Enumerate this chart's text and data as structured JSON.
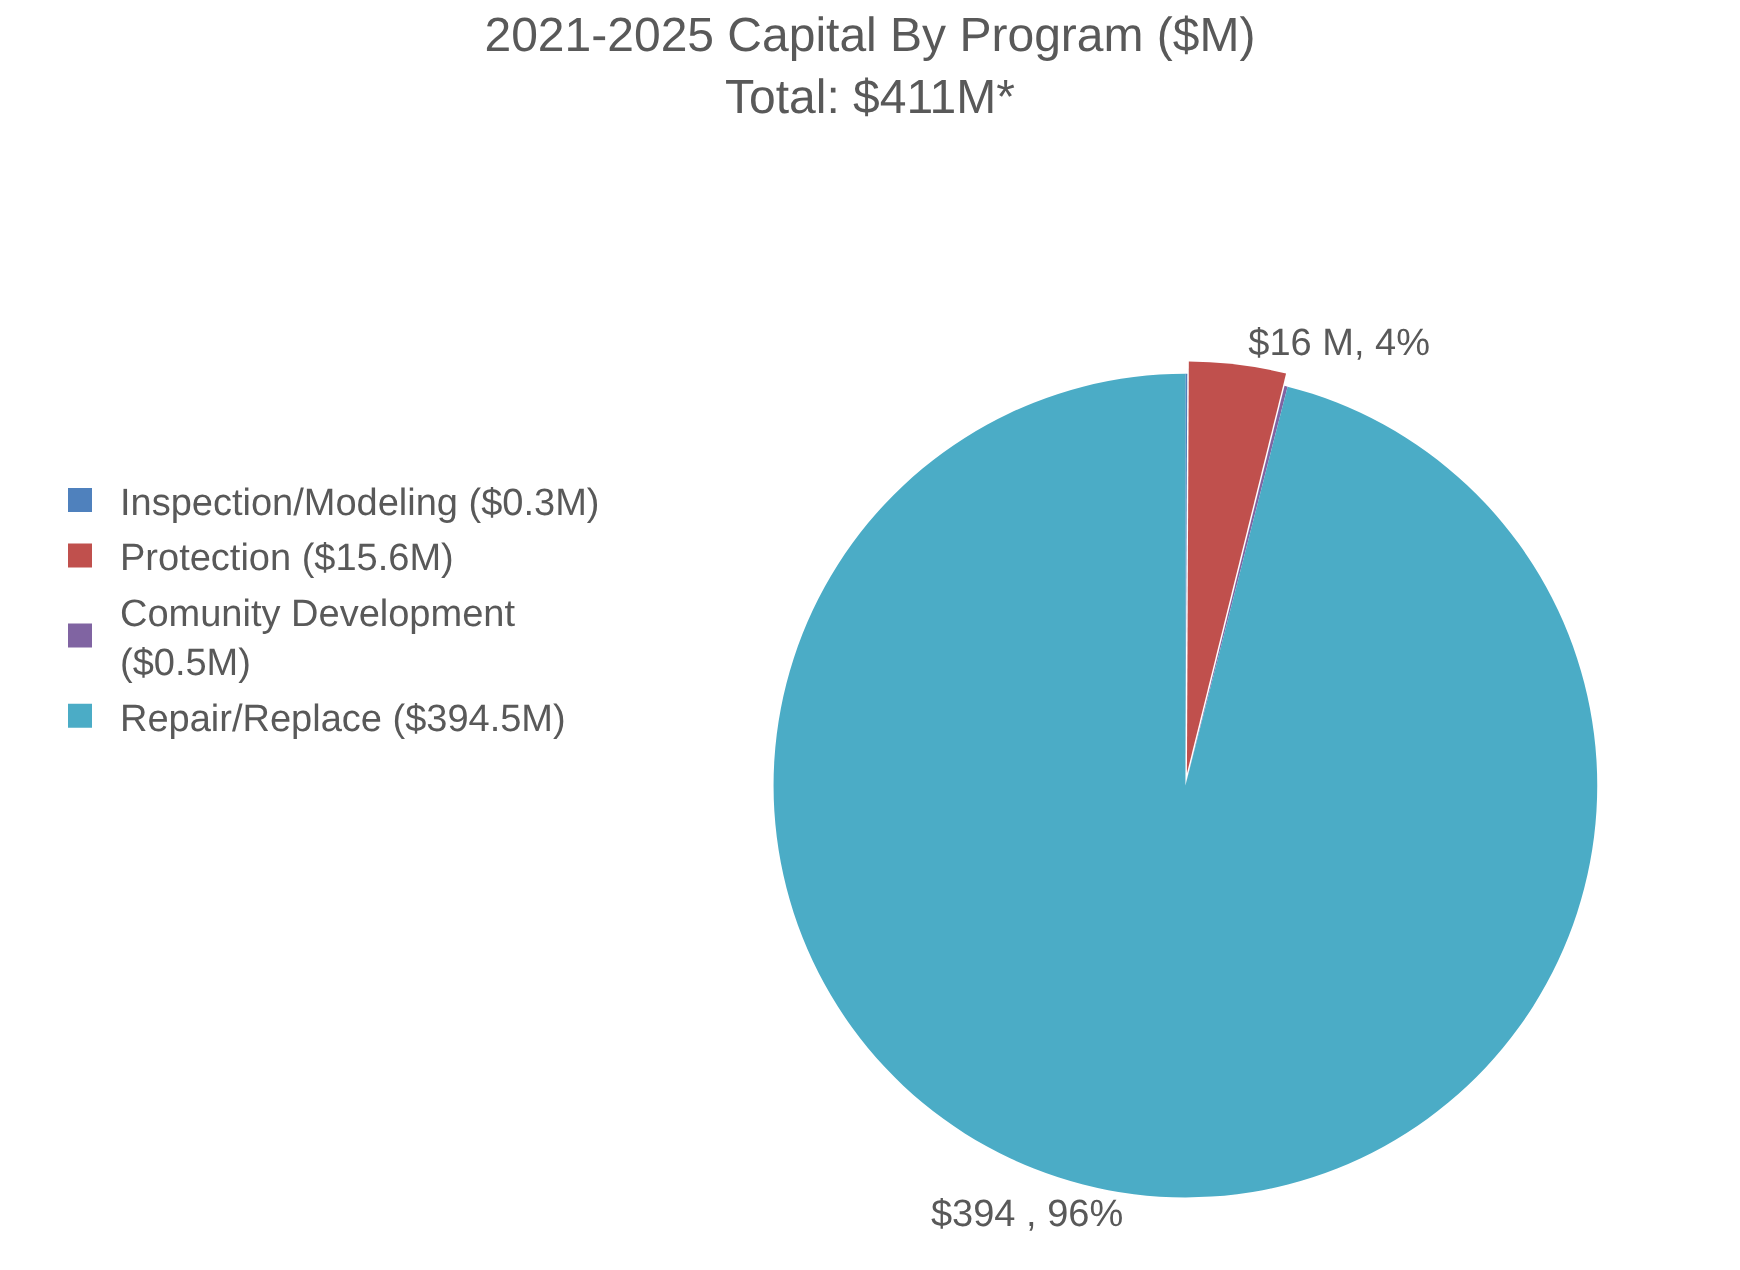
{
  "chart_data": {
    "type": "pie",
    "title": "2021-2025 Capital By Program ($M)",
    "subtitle": "Total: $411M*",
    "categories": [
      "Inspection/Modeling ($0.3M)",
      "Protection ($15.6M)",
      "Comunity Development\n($0.5M)",
      "Repair/Replace ($394.5M)"
    ],
    "values": [
      0.3,
      15.6,
      0.5,
      394.5
    ],
    "colors": [
      "#4f81bd",
      "#c0504d",
      "#8064a2",
      "#4bacc6"
    ],
    "value_labels": [
      null,
      "$16 M, 4%",
      null,
      "$394 , 96%"
    ],
    "legend": "left"
  }
}
